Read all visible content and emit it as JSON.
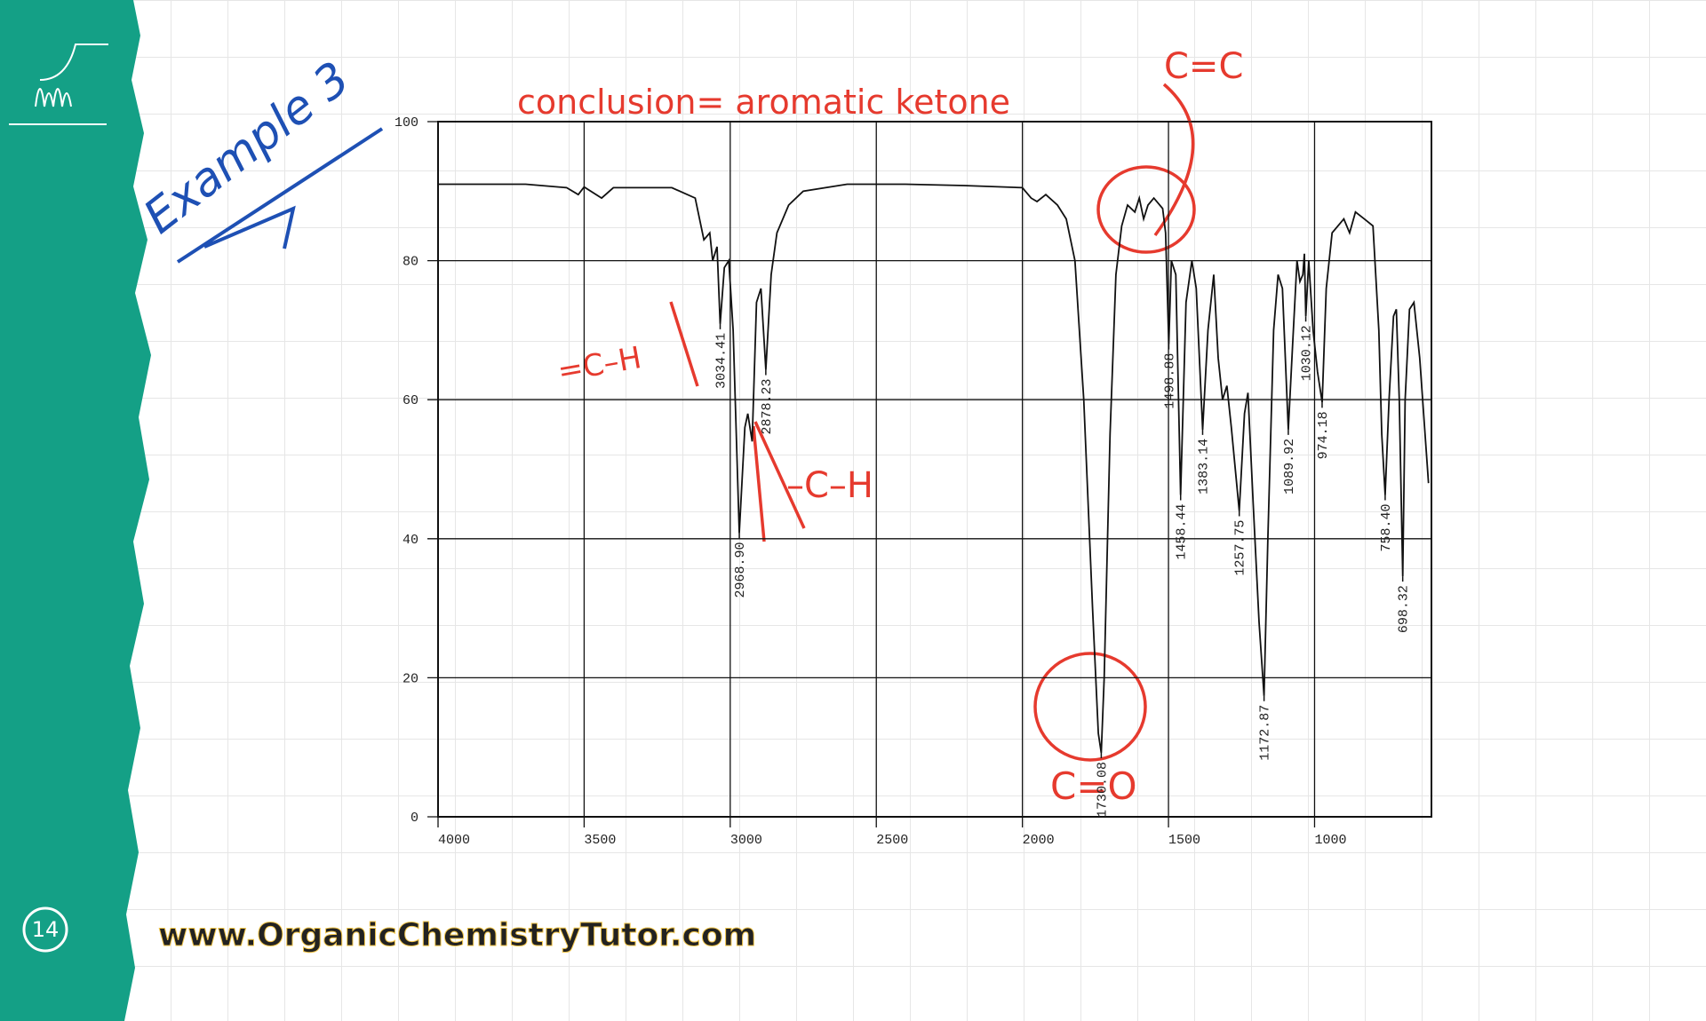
{
  "slide": {
    "heading": "Example 3",
    "page_number": "14",
    "website": "www.OrganicChemistryTutor.com"
  },
  "chart_data": {
    "type": "line",
    "conclusion": "conclusion= aromatic ketone",
    "annotations": [
      "C=C",
      "C=O",
      "=C–H",
      "–C–H"
    ],
    "xlim": [
      4000,
      600
    ],
    "xticks": [
      4000,
      3500,
      3000,
      2500,
      2000,
      1500,
      1000
    ],
    "ylim": [
      0,
      100
    ],
    "yticks": [
      0,
      20,
      40,
      60,
      80,
      100
    ],
    "grid": true,
    "series": [
      {
        "color": "#111111",
        "x": [
          4000,
          3700,
          3560,
          3520,
          3500,
          3440,
          3400,
          3200,
          3120,
          3090,
          3070,
          3060,
          3045,
          3034.41,
          3020,
          3005,
          2990,
          2968.9,
          2950,
          2940,
          2925,
          2910,
          2895,
          2878.23,
          2860,
          2840,
          2800,
          2750,
          2600,
          2400,
          2200,
          2000,
          1970,
          1950,
          1920,
          1880,
          1850,
          1820,
          1790,
          1760,
          1740,
          1730.08,
          1720,
          1700,
          1680,
          1660,
          1640,
          1615,
          1600,
          1585,
          1570,
          1550,
          1520,
          1510,
          1498.88,
          1490,
          1475,
          1458.44,
          1440,
          1420,
          1405,
          1383.14,
          1365,
          1345,
          1330,
          1315,
          1300,
          1285,
          1257.75,
          1240,
          1228,
          1210,
          1190,
          1172.87,
          1160,
          1140,
          1125,
          1110,
          1089.92,
          1075,
          1060,
          1050,
          1040,
          1035,
          1030.12,
          1020,
          1005,
          990,
          974.18,
          960,
          940,
          900,
          880,
          860,
          830,
          800,
          780,
          770,
          758.4,
          745,
          730,
          720,
          710,
          698.32,
          690,
          675,
          660,
          640,
          610
        ],
        "values": [
          91,
          91,
          90.5,
          89.5,
          90.6,
          89,
          90.5,
          90.5,
          89,
          83,
          84,
          80,
          82,
          70.9,
          79,
          80,
          70,
          40.8,
          56,
          58,
          54,
          74,
          76,
          64.3,
          78,
          84,
          88,
          90,
          91,
          91,
          90.8,
          90.5,
          89,
          88.5,
          89.5,
          88,
          86,
          80,
          60,
          30,
          12,
          9.2,
          20,
          55,
          78,
          85,
          88,
          87,
          89,
          86,
          88,
          89,
          87.5,
          84,
          68,
          80,
          78,
          46.3,
          74,
          80,
          76,
          55.7,
          70,
          78,
          66,
          60,
          62,
          56,
          44,
          58,
          61,
          45,
          28,
          17.4,
          40,
          70,
          78,
          76,
          55.7,
          68,
          80,
          77,
          78,
          81,
          72,
          80,
          70,
          64,
          59.6,
          76,
          84,
          86,
          84,
          87,
          86,
          85,
          70,
          55,
          46.3,
          60,
          72,
          73,
          60,
          34.6,
          60,
          73,
          74,
          66,
          48
        ]
      }
    ],
    "peaks": {
      "x": [
        3034.41,
        2968.9,
        2878.23,
        1730.08,
        1498.88,
        1458.44,
        1383.14,
        1257.75,
        1172.87,
        1089.92,
        1030.12,
        974.18,
        758.4,
        698.32
      ],
      "labels": [
        "3034.41",
        "2968.90",
        "2878.23",
        "1730.08",
        "1498.88",
        "1458.44",
        "1383.14",
        "1257.75",
        "1172.87",
        "1089.92",
        "1030.12",
        "974.18",
        "758.40",
        "698.32"
      ],
      "values": [
        70.9,
        40.8,
        64.3,
        9.2,
        68,
        46.3,
        55.7,
        44,
        17.4,
        55.7,
        72,
        59.6,
        46.3,
        34.6
      ]
    }
  }
}
